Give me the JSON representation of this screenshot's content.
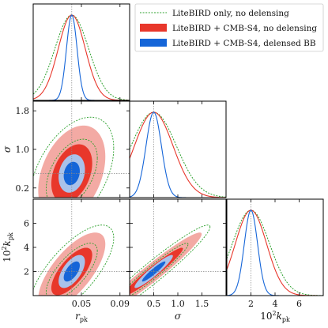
{
  "chart_data": {
    "type": "triangle-corner",
    "parameters": [
      {
        "key": "r_pk",
        "label": "r",
        "label_sub": "pk",
        "label_prefix": "",
        "range": [
          0.0,
          0.1
        ],
        "ticks": [
          0.05,
          0.09
        ],
        "tick_labels": [
          "0.05",
          "0.09"
        ]
      },
      {
        "key": "sigma",
        "label": "σ",
        "label_sub": "",
        "label_prefix": "",
        "range": [
          0.0,
          2.0
        ],
        "ticks": [
          0.5,
          1.0,
          1.5
        ],
        "tick_labels": [
          "0.5",
          "1.0",
          "1.5"
        ]
      },
      {
        "key": "k_pk",
        "label": "k",
        "label_sub": "pk",
        "label_prefix": "10",
        "range": [
          0.0,
          8.0
        ],
        "ticks": [
          2,
          4,
          6
        ],
        "tick_labels": [
          "2",
          "4",
          "6"
        ]
      }
    ],
    "side_tick_labels": {
      "sigma": {
        "ticks": [
          0.2,
          1.0,
          1.8
        ],
        "labels": [
          "0.2",
          "1.0",
          "1.8"
        ],
        "range": [
          0.0,
          2.0
        ]
      },
      "k_pk": {
        "ticks": [
          2,
          4,
          6
        ],
        "labels": [
          "2",
          "4",
          "6"
        ],
        "range": [
          0.0,
          8.0
        ]
      }
    },
    "fiducial": {
      "r_pk": 0.04,
      "sigma": 0.5,
      "k_pk": 2.0
    },
    "series": [
      {
        "name": "LiteBIRD only, no delensing",
        "style": "dotted-line",
        "color": "#2ca02c",
        "sd": {
          "r_pk": 0.0175,
          "sigma": 0.47,
          "k_pk": 1.55
        },
        "corr": {
          "r_sigma": 0.45,
          "r_k": 0.72,
          "sigma_k": 0.96
        }
      },
      {
        "name": "LiteBIRD + CMB-S4, no delensing",
        "style": "filled",
        "color": "#e8372b",
        "fill_inner": "#e8372b",
        "fill_outer": "#f3aaa4",
        "sd": {
          "r_pk": 0.014,
          "sigma": 0.4,
          "k_pk": 1.3
        },
        "corr": {
          "r_sigma": 0.35,
          "r_k": 0.7,
          "sigma_k": 0.96
        }
      },
      {
        "name": "LiteBIRD + CMB-S4, delensed BB",
        "style": "filled",
        "color": "#1565d8",
        "fill_inner": "#1565d8",
        "fill_outer": "#a9c2ea",
        "sd": {
          "r_pk": 0.0055,
          "sigma": 0.16,
          "k_pk": 0.55
        },
        "corr": {
          "r_sigma": 0.2,
          "r_k": 0.6,
          "sigma_k": 0.94
        }
      }
    ]
  }
}
